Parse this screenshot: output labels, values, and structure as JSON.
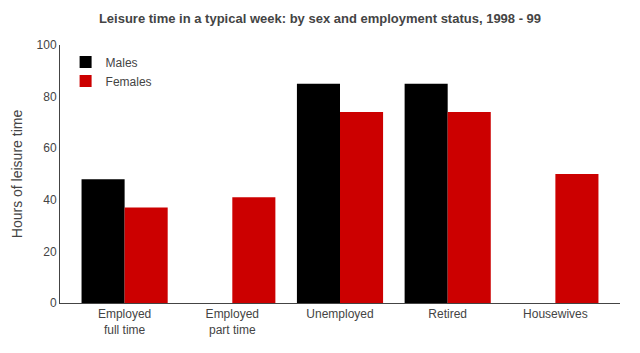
{
  "chart_data": {
    "type": "bar",
    "title": "Leisure time in a typical week: by sex and employment status, 1998 - 99",
    "ylabel": "Hours of leisure time",
    "categories": [
      "Employed\nfull time",
      "Employed\npart time",
      "Unemployed",
      "Retired",
      "Housewives"
    ],
    "series": [
      {
        "name": "Males",
        "color": "#000000",
        "values": [
          48,
          0,
          85,
          85,
          0
        ]
      },
      {
        "name": "Females",
        "color": "#cc0000",
        "values": [
          37,
          41,
          74,
          74,
          50
        ]
      }
    ],
    "ylim": [
      0,
      100
    ],
    "yticks": [
      0,
      20,
      40,
      60,
      80,
      100
    ],
    "grid": false,
    "legend": "upper left"
  }
}
